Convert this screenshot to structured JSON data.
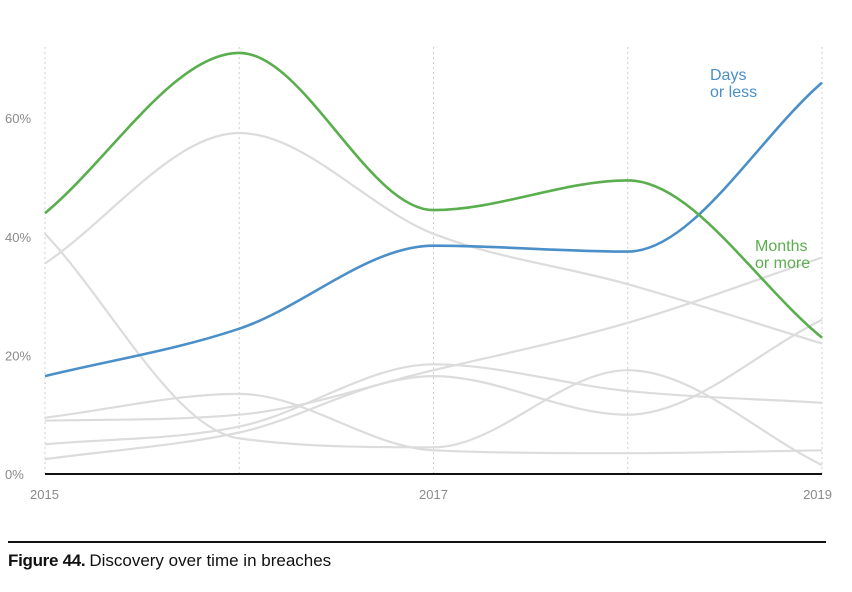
{
  "chart_data": {
    "type": "line",
    "x": [
      2015,
      2016,
      2017,
      2018,
      2019
    ],
    "xticks": [
      "2015",
      "2017",
      "2019"
    ],
    "xtick_values": [
      2015,
      2017,
      2019
    ],
    "yticks": [
      "0%",
      "20%",
      "40%",
      "60%"
    ],
    "ytick_values": [
      0,
      20,
      40,
      60
    ],
    "ylim": [
      0,
      72
    ],
    "grid": "vertical dotted at each year",
    "series": [
      {
        "name": "Days or less",
        "label_lines": [
          "Days",
          "or less"
        ],
        "color": "#4a8fc8",
        "highlight": true,
        "values": [
          16.5,
          24.5,
          38.5,
          37.5,
          66
        ]
      },
      {
        "name": "Months or more",
        "label_lines": [
          "Months",
          "or more"
        ],
        "color": "#5aae4e",
        "highlight": true,
        "values": [
          44,
          71,
          44.5,
          49.5,
          23
        ]
      }
    ],
    "other_series": [
      {
        "color": "#dcdcdc",
        "values": [
          35.5,
          57.5,
          40.5,
          32,
          22
        ]
      },
      {
        "color": "#dcdcdc",
        "values": [
          40.5,
          6,
          4.5,
          17.5,
          1.5
        ]
      },
      {
        "color": "#dcdcdc",
        "values": [
          9,
          10,
          17.5,
          25.5,
          36.5
        ]
      },
      {
        "color": "#dcdcdc",
        "values": [
          9.5,
          13.5,
          4,
          3.5,
          4
        ]
      },
      {
        "color": "#dcdcdc",
        "values": [
          2.5,
          7,
          16.5,
          10,
          26
        ]
      },
      {
        "color": "#dcdcdc",
        "values": [
          5,
          8,
          18.5,
          14,
          12
        ]
      }
    ]
  },
  "caption": {
    "label": "Figure 44.",
    "text": "Discovery over time in breaches"
  }
}
